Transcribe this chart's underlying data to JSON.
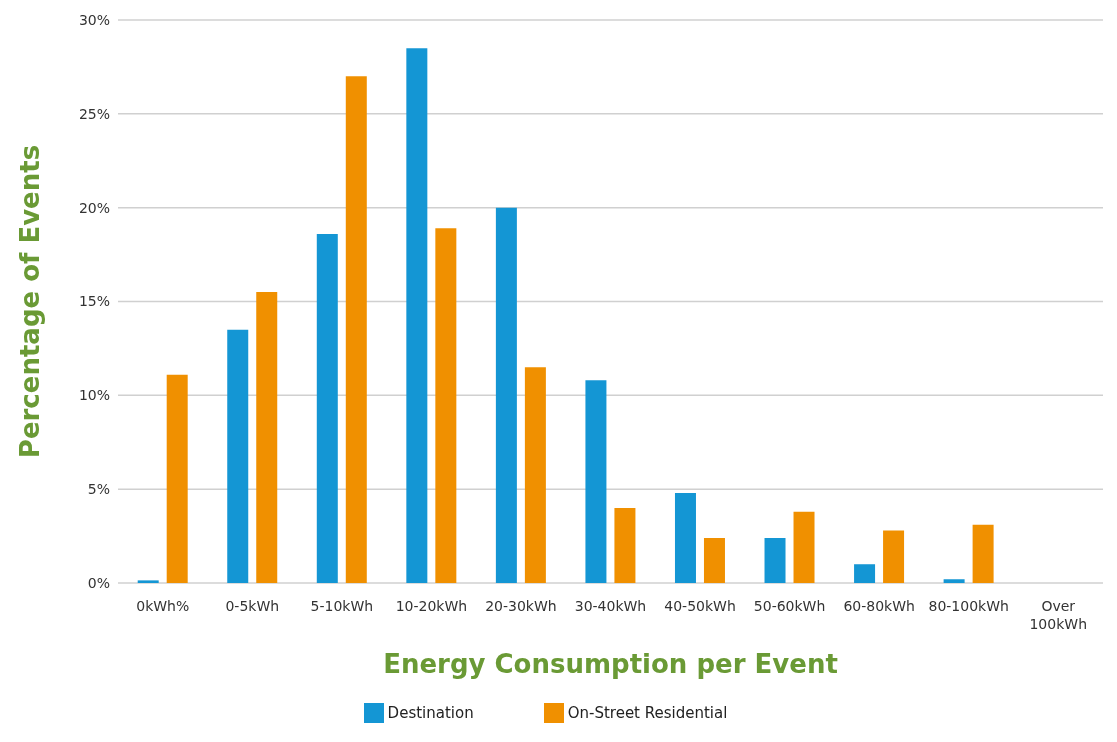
{
  "chart_data": {
    "type": "bar",
    "xlabel": "Energy Consumption per Event",
    "ylabel": "Percentage of Events",
    "categories": [
      "0kWh%",
      "0-5kWh",
      "5-10kWh",
      "10-20kWh",
      "20-30kWh",
      "30-40kWh",
      "40-50kWh",
      "50-60kWh",
      "60-80kWh",
      "80-100kWh",
      "Over 100kWh"
    ],
    "series": [
      {
        "name": "Destination",
        "color": "#1496d4",
        "values": [
          0.14,
          13.5,
          18.6,
          28.5,
          20.0,
          10.8,
          4.8,
          2.4,
          1.0,
          0.2,
          0
        ]
      },
      {
        "name": "On-Street Residential",
        "color": "#f09000",
        "values": [
          11.1,
          15.5,
          27.0,
          18.9,
          11.5,
          4.0,
          2.4,
          3.8,
          2.8,
          3.1,
          0
        ]
      }
    ],
    "ylim": [
      0,
      30
    ],
    "yticks": [
      {
        "value": 0,
        "label": "0%"
      },
      {
        "value": 5,
        "label": "5%"
      },
      {
        "value": 10,
        "label": "10%"
      },
      {
        "value": 15,
        "label": "15%"
      },
      {
        "value": 20,
        "label": "20%"
      },
      {
        "value": 25,
        "label": "25%"
      },
      {
        "value": 30,
        "label": "30%"
      }
    ],
    "grid": "y",
    "legend": "bottom"
  }
}
